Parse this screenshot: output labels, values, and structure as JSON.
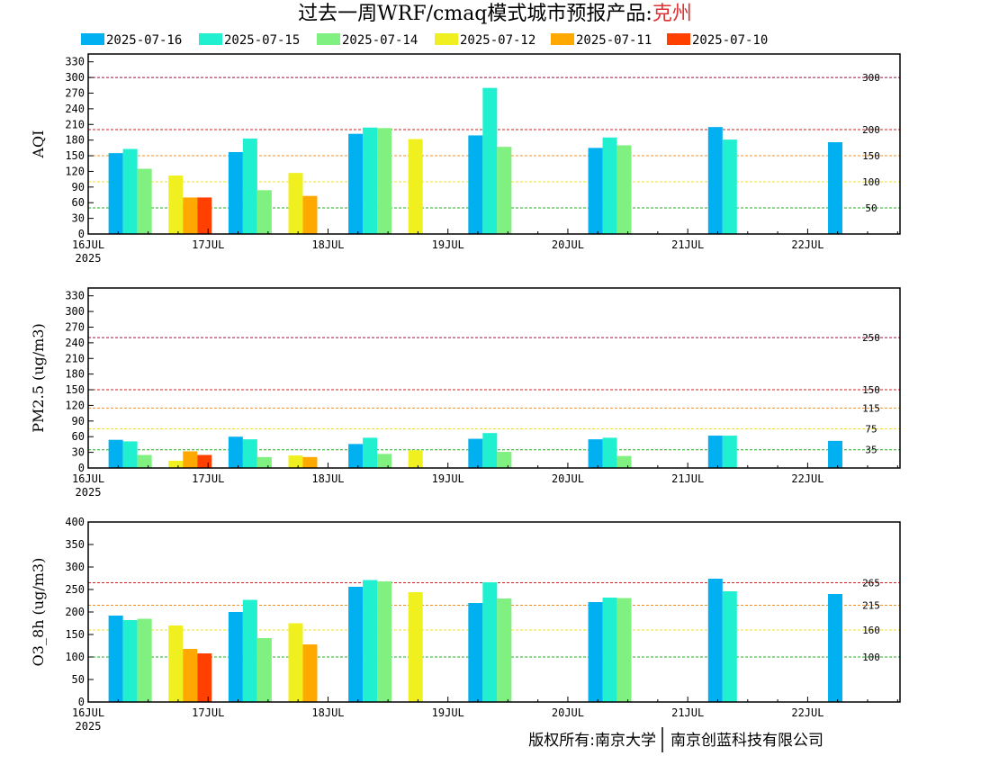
{
  "title": {
    "main": "过去一周WRF/cmaq模式城市预报产品:",
    "city": "克州",
    "city_color": "#e03030"
  },
  "footer": {
    "left": "版权所有:南京大学",
    "right": "南京创蓝科技有限公司"
  },
  "chart_data": [
    {
      "type": "bar",
      "ylabel": "AQI",
      "ylim": [
        0,
        345
      ],
      "yticks": [
        0,
        30,
        60,
        90,
        120,
        150,
        180,
        210,
        240,
        270,
        300,
        330
      ],
      "reference_lines": [
        {
          "value": 300,
          "label": "300",
          "color": "#9a1040"
        },
        {
          "value": 200,
          "label": "200",
          "color": "#d02020"
        },
        {
          "value": 150,
          "label": "150",
          "color": "#f09020"
        },
        {
          "value": 100,
          "label": "100",
          "color": "#f0e020"
        },
        {
          "value": 50,
          "label": "50",
          "color": "#20b020"
        }
      ],
      "bars": [
        {
          "slot": 0.35,
          "series": 0,
          "value": 155
        },
        {
          "slot": 0.35,
          "series": 1,
          "value": 163
        },
        {
          "slot": 0.35,
          "series": 2,
          "value": 125
        },
        {
          "slot": 0.85,
          "series": 3,
          "value": 112
        },
        {
          "slot": 0.85,
          "series": 4,
          "value": 70
        },
        {
          "slot": 0.85,
          "series": 5,
          "value": 70
        },
        {
          "slot": 1.35,
          "series": 0,
          "value": 157
        },
        {
          "slot": 1.35,
          "series": 1,
          "value": 183
        },
        {
          "slot": 1.35,
          "series": 2,
          "value": 84
        },
        {
          "slot": 1.85,
          "series": 3,
          "value": 117
        },
        {
          "slot": 1.85,
          "series": 4,
          "value": 73
        },
        {
          "slot": 2.35,
          "series": 0,
          "value": 192
        },
        {
          "slot": 2.35,
          "series": 1,
          "value": 204
        },
        {
          "slot": 2.35,
          "series": 2,
          "value": 203
        },
        {
          "slot": 2.85,
          "series": 3,
          "value": 182
        },
        {
          "slot": 3.35,
          "series": 0,
          "value": 189
        },
        {
          "slot": 3.35,
          "series": 1,
          "value": 280
        },
        {
          "slot": 3.35,
          "series": 2,
          "value": 167
        },
        {
          "slot": 4.35,
          "series": 0,
          "value": 165
        },
        {
          "slot": 4.35,
          "series": 1,
          "value": 185
        },
        {
          "slot": 4.35,
          "series": 2,
          "value": 170
        },
        {
          "slot": 5.35,
          "series": 0,
          "value": 205
        },
        {
          "slot": 5.35,
          "series": 1,
          "value": 181
        },
        {
          "slot": 6.35,
          "series": 0,
          "value": 176
        }
      ]
    },
    {
      "type": "bar",
      "ylabel": "PM2.5 (ug/m3)",
      "ylim": [
        0,
        345
      ],
      "yticks": [
        0,
        30,
        60,
        90,
        120,
        150,
        180,
        210,
        240,
        270,
        300,
        330
      ],
      "reference_lines": [
        {
          "value": 250,
          "label": "250",
          "color": "#9a1040"
        },
        {
          "value": 150,
          "label": "150",
          "color": "#d02020"
        },
        {
          "value": 115,
          "label": "115",
          "color": "#f09020"
        },
        {
          "value": 75,
          "label": "75",
          "color": "#f0e020"
        },
        {
          "value": 35,
          "label": "35",
          "color": "#20b020"
        }
      ],
      "bars": [
        {
          "slot": 0.35,
          "series": 0,
          "value": 54
        },
        {
          "slot": 0.35,
          "series": 1,
          "value": 51
        },
        {
          "slot": 0.35,
          "series": 2,
          "value": 25
        },
        {
          "slot": 0.85,
          "series": 3,
          "value": 14
        },
        {
          "slot": 0.85,
          "series": 4,
          "value": 32
        },
        {
          "slot": 0.85,
          "series": 5,
          "value": 25
        },
        {
          "slot": 1.35,
          "series": 0,
          "value": 60
        },
        {
          "slot": 1.35,
          "series": 1,
          "value": 55
        },
        {
          "slot": 1.35,
          "series": 2,
          "value": 21
        },
        {
          "slot": 1.85,
          "series": 3,
          "value": 24
        },
        {
          "slot": 1.85,
          "series": 4,
          "value": 21
        },
        {
          "slot": 2.35,
          "series": 0,
          "value": 46
        },
        {
          "slot": 2.35,
          "series": 1,
          "value": 58
        },
        {
          "slot": 2.35,
          "series": 2,
          "value": 27
        },
        {
          "slot": 2.85,
          "series": 3,
          "value": 34
        },
        {
          "slot": 3.35,
          "series": 0,
          "value": 56
        },
        {
          "slot": 3.35,
          "series": 1,
          "value": 67
        },
        {
          "slot": 3.35,
          "series": 2,
          "value": 31
        },
        {
          "slot": 4.35,
          "series": 0,
          "value": 55
        },
        {
          "slot": 4.35,
          "series": 1,
          "value": 58
        },
        {
          "slot": 4.35,
          "series": 2,
          "value": 23
        },
        {
          "slot": 5.35,
          "series": 0,
          "value": 62
        },
        {
          "slot": 5.35,
          "series": 1,
          "value": 62
        },
        {
          "slot": 6.35,
          "series": 0,
          "value": 52
        }
      ]
    },
    {
      "type": "bar",
      "ylabel": "O3_8h (ug/m3)",
      "ylim": [
        0,
        400
      ],
      "yticks": [
        0,
        50,
        100,
        150,
        200,
        250,
        300,
        350,
        400
      ],
      "reference_lines": [
        {
          "value": 265,
          "label": "265",
          "color": "#d02020"
        },
        {
          "value": 215,
          "label": "215",
          "color": "#f09020"
        },
        {
          "value": 160,
          "label": "160",
          "color": "#f0e020"
        },
        {
          "value": 100,
          "label": "100",
          "color": "#20b020"
        }
      ],
      "bars": [
        {
          "slot": 0.35,
          "series": 0,
          "value": 192
        },
        {
          "slot": 0.35,
          "series": 1,
          "value": 182
        },
        {
          "slot": 0.35,
          "series": 2,
          "value": 185
        },
        {
          "slot": 0.85,
          "series": 3,
          "value": 170
        },
        {
          "slot": 0.85,
          "series": 4,
          "value": 118
        },
        {
          "slot": 0.85,
          "series": 5,
          "value": 108
        },
        {
          "slot": 1.35,
          "series": 0,
          "value": 200
        },
        {
          "slot": 1.35,
          "series": 1,
          "value": 227
        },
        {
          "slot": 1.35,
          "series": 2,
          "value": 142
        },
        {
          "slot": 1.85,
          "series": 3,
          "value": 175
        },
        {
          "slot": 1.85,
          "series": 4,
          "value": 128
        },
        {
          "slot": 2.35,
          "series": 0,
          "value": 256
        },
        {
          "slot": 2.35,
          "series": 1,
          "value": 271
        },
        {
          "slot": 2.35,
          "series": 2,
          "value": 268
        },
        {
          "slot": 2.85,
          "series": 3,
          "value": 244
        },
        {
          "slot": 3.35,
          "series": 0,
          "value": 220
        },
        {
          "slot": 3.35,
          "series": 1,
          "value": 266
        },
        {
          "slot": 3.35,
          "series": 2,
          "value": 230
        },
        {
          "slot": 4.35,
          "series": 0,
          "value": 222
        },
        {
          "slot": 4.35,
          "series": 1,
          "value": 232
        },
        {
          "slot": 4.35,
          "series": 2,
          "value": 231
        },
        {
          "slot": 5.35,
          "series": 0,
          "value": 274
        },
        {
          "slot": 5.35,
          "series": 1,
          "value": 246
        },
        {
          "slot": 6.35,
          "series": 0,
          "value": 240
        }
      ]
    }
  ],
  "series": [
    {
      "name": "2025-07-16",
      "color": "#00b0f0"
    },
    {
      "name": "2025-07-15",
      "color": "#20f0d0"
    },
    {
      "name": "2025-07-14",
      "color": "#80f080"
    },
    {
      "name": "2025-07-12",
      "color": "#f0f020"
    },
    {
      "name": "2025-07-11",
      "color": "#ffa800"
    },
    {
      "name": "2025-07-10",
      "color": "#ff4000"
    }
  ],
  "x_axis": {
    "labels": [
      "16JUL",
      "17JUL",
      "18JUL",
      "19JUL",
      "20JUL",
      "21JUL",
      "22JUL"
    ],
    "year": "2025",
    "num_days": 6.77
  }
}
